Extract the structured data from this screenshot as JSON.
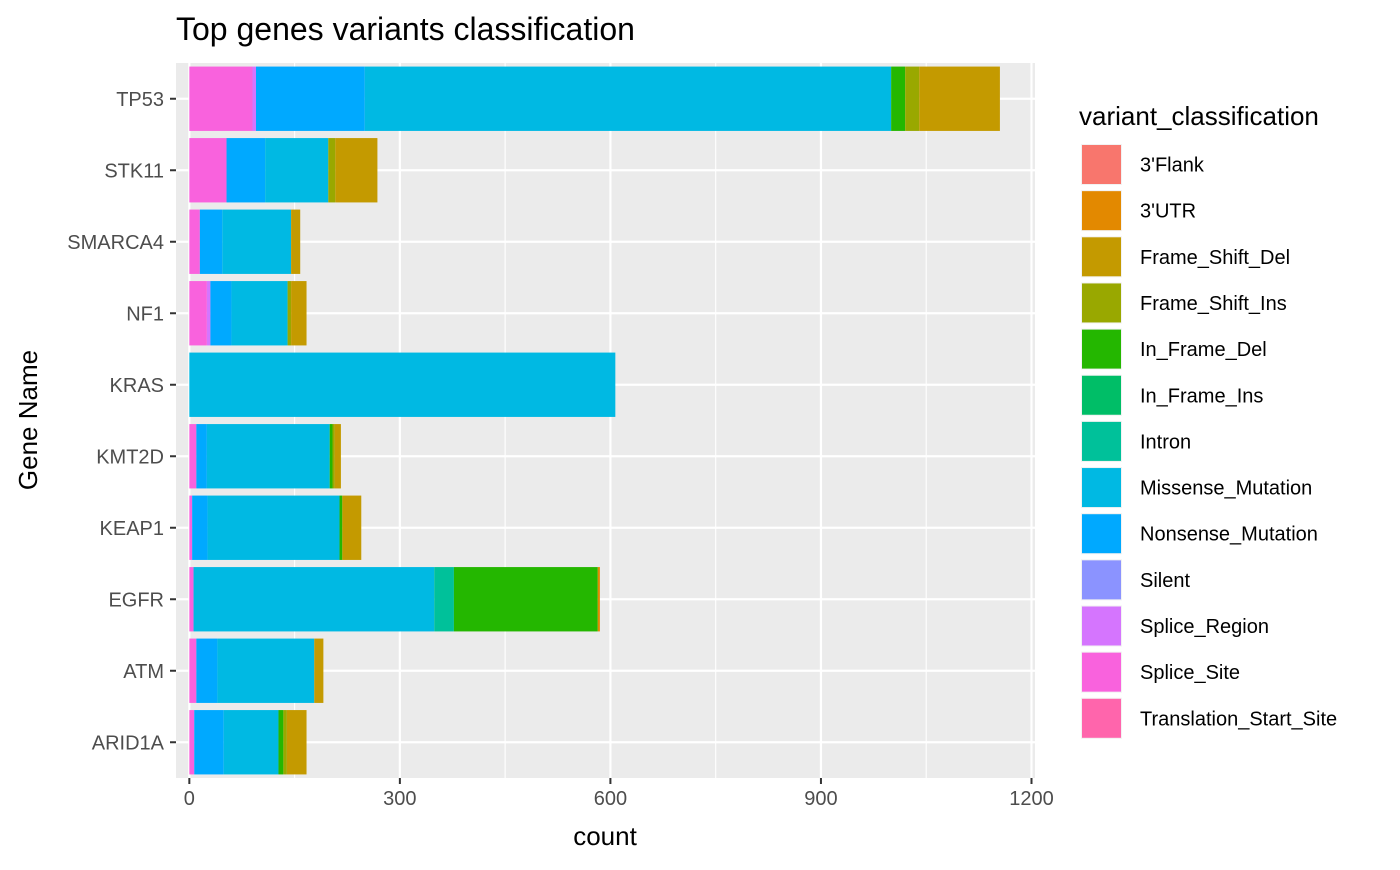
{
  "chart_data": {
    "type": "bar",
    "orientation": "horizontal",
    "stacked": true,
    "title": "Top genes variants classification",
    "xlabel": "count",
    "ylabel": "Gene Name",
    "xlim": [
      -19,
      1205
    ],
    "xticks": [
      0,
      300,
      600,
      900,
      1200
    ],
    "grid": true,
    "legend_title": "variant_classification",
    "legend_position": "right",
    "categories": [
      "TP53",
      "STK11",
      "SMARCA4",
      "NF1",
      "KRAS",
      "KMT2D",
      "KEAP1",
      "EGFR",
      "ATM",
      "ARID1A"
    ],
    "series": [
      {
        "name": "3'Flank",
        "color": "#F8766D",
        "values": [
          0,
          0,
          0,
          0,
          0,
          0,
          0,
          0,
          0,
          0
        ]
      },
      {
        "name": "3'UTR",
        "color": "#E38900",
        "values": [
          0,
          0,
          0,
          0,
          0,
          0,
          0,
          3,
          0,
          0
        ]
      },
      {
        "name": "Frame_Shift_Del",
        "color": "#C49A00",
        "values": [
          115,
          60,
          13,
          22,
          0,
          9,
          27,
          0,
          13,
          28
        ]
      },
      {
        "name": "Frame_Shift_Ins",
        "color": "#99A800",
        "values": [
          20,
          10,
          0,
          5,
          0,
          3,
          0,
          0,
          0,
          5
        ]
      },
      {
        "name": "In_Frame_Del",
        "color": "#24B700",
        "values": [
          20,
          0,
          0,
          0,
          0,
          4,
          4,
          205,
          0,
          7
        ]
      },
      {
        "name": "In_Frame_Ins",
        "color": "#00BE67",
        "values": [
          0,
          0,
          0,
          0,
          0,
          0,
          0,
          0,
          0,
          0
        ]
      },
      {
        "name": "Intron",
        "color": "#00C19A",
        "values": [
          0,
          0,
          0,
          0,
          0,
          0,
          0,
          28,
          0,
          0
        ]
      },
      {
        "name": "Missense_Mutation",
        "color": "#00B9E3",
        "values": [
          750,
          90,
          98,
          80,
          607,
          175,
          188,
          343,
          138,
          78
        ]
      },
      {
        "name": "Nonsense_Mutation",
        "color": "#00A9FF",
        "values": [
          155,
          55,
          32,
          30,
          0,
          15,
          22,
          0,
          30,
          42
        ]
      },
      {
        "name": "Silent",
        "color": "#8B93FF",
        "values": [
          0,
          0,
          0,
          0,
          0,
          0,
          0,
          0,
          0,
          0
        ]
      },
      {
        "name": "Splice_Region",
        "color": "#D575FE",
        "values": [
          5,
          0,
          0,
          5,
          0,
          0,
          0,
          0,
          0,
          0
        ]
      },
      {
        "name": "Splice_Site",
        "color": "#F962DD",
        "values": [
          90,
          53,
          15,
          25,
          0,
          10,
          4,
          6,
          10,
          7
        ]
      },
      {
        "name": "Translation_Start_Site",
        "color": "#FF65AC",
        "values": [
          0,
          0,
          0,
          0,
          0,
          0,
          0,
          0,
          0,
          0
        ]
      }
    ]
  }
}
